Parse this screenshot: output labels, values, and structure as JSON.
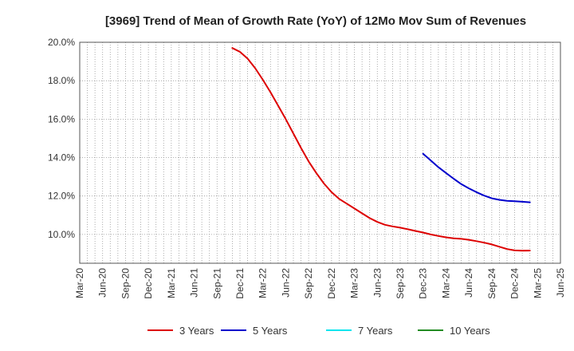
{
  "chart_data": {
    "type": "line",
    "title": "[3969]  Trend of Mean of Growth Rate (YoY) of 12Mo Mov Sum of Revenues",
    "xlabel": "",
    "ylabel": "",
    "x_ticks": [
      "Mar-20",
      "Jun-20",
      "Sep-20",
      "Dec-20",
      "Mar-21",
      "Jun-21",
      "Sep-21",
      "Dec-21",
      "Mar-22",
      "Jun-22",
      "Sep-22",
      "Dec-22",
      "Mar-23",
      "Jun-23",
      "Sep-23",
      "Dec-23",
      "Mar-24",
      "Jun-24",
      "Sep-24",
      "Dec-24",
      "Mar-25",
      "Jun-25"
    ],
    "x_range_months": [
      0,
      63
    ],
    "y_ticks": [
      "10.0%",
      "12.0%",
      "14.0%",
      "16.0%",
      "18.0%",
      "20.0%"
    ],
    "y_tick_values": [
      10,
      12,
      14,
      16,
      18,
      20
    ],
    "ylim": [
      8.5,
      20
    ],
    "grid": true,
    "legend_position": "bottom",
    "series": [
      {
        "name": "3 Years",
        "color": "#dd0000",
        "points": [
          [
            20,
            19.7
          ],
          [
            21,
            19.5
          ],
          [
            22,
            19.15
          ],
          [
            23,
            18.65
          ],
          [
            24,
            18.05
          ],
          [
            25,
            17.4
          ],
          [
            26,
            16.7
          ],
          [
            27,
            16.0
          ],
          [
            28,
            15.25
          ],
          [
            29,
            14.5
          ],
          [
            30,
            13.8
          ],
          [
            31,
            13.2
          ],
          [
            32,
            12.65
          ],
          [
            33,
            12.2
          ],
          [
            34,
            11.85
          ],
          [
            35,
            11.6
          ],
          [
            36,
            11.35
          ],
          [
            37,
            11.1
          ],
          [
            38,
            10.85
          ],
          [
            39,
            10.65
          ],
          [
            40,
            10.5
          ],
          [
            41,
            10.42
          ],
          [
            42,
            10.35
          ],
          [
            43,
            10.27
          ],
          [
            44,
            10.18
          ],
          [
            45,
            10.1
          ],
          [
            46,
            10.0
          ],
          [
            47,
            9.92
          ],
          [
            48,
            9.85
          ],
          [
            49,
            9.8
          ],
          [
            50,
            9.77
          ],
          [
            51,
            9.72
          ],
          [
            52,
            9.65
          ],
          [
            53,
            9.57
          ],
          [
            54,
            9.48
          ],
          [
            55,
            9.36
          ],
          [
            56,
            9.24
          ],
          [
            57,
            9.17
          ],
          [
            58,
            9.15
          ],
          [
            59,
            9.16
          ]
        ]
      },
      {
        "name": "5 Years",
        "color": "#0000cc",
        "points": [
          [
            45,
            14.2
          ],
          [
            46,
            13.85
          ],
          [
            47,
            13.5
          ],
          [
            48,
            13.2
          ],
          [
            49,
            12.9
          ],
          [
            50,
            12.62
          ],
          [
            51,
            12.4
          ],
          [
            52,
            12.2
          ],
          [
            53,
            12.02
          ],
          [
            54,
            11.88
          ],
          [
            55,
            11.8
          ],
          [
            56,
            11.75
          ],
          [
            57,
            11.73
          ],
          [
            58,
            11.7
          ],
          [
            59,
            11.67
          ]
        ]
      },
      {
        "name": "7 Years",
        "color": "#00e5ee",
        "points": []
      },
      {
        "name": "10 Years",
        "color": "#228b22",
        "points": []
      }
    ]
  }
}
